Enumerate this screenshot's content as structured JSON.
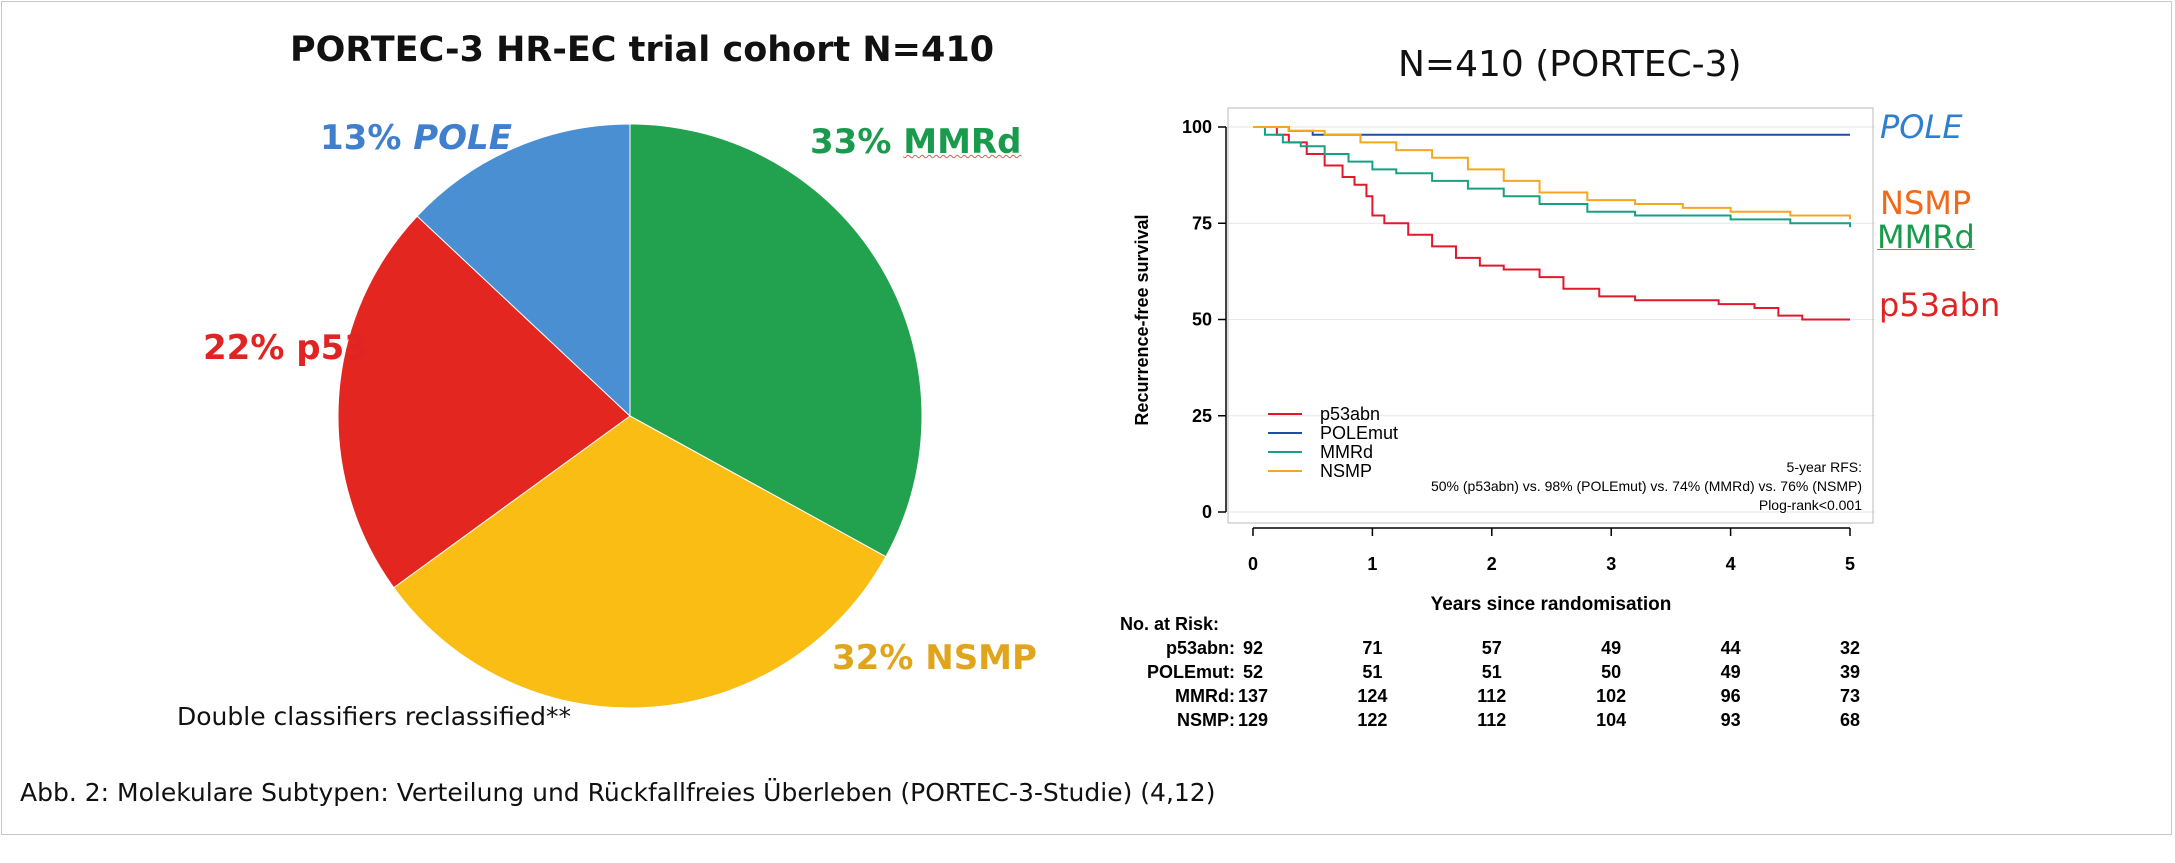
{
  "left_title": "PORTEC-3 HR-EC trial cohort  N=410",
  "pie_labels": [
    {
      "pct": "13%",
      "name": "POLE",
      "color": "#3f7fcb"
    },
    {
      "pct": "33%",
      "name": "MMRd",
      "color": "#1a9a4c"
    },
    {
      "pct": "22%",
      "name": "p53",
      "color": "#e02323"
    },
    {
      "pct": "32%",
      "name": "NSMP",
      "color": "#e0a51a"
    }
  ],
  "footnote": "Double classifiers reclassified**",
  "caption": "Abb. 2: Molekulare Subtypen: Verteilung und Rückfallfreies Überleben (PORTEC-3-Studie) (4,12)",
  "km_title": "N=410 (PORTEC-3)",
  "end_labels": {
    "pole": "POLE",
    "nsmp": "NSMP",
    "mmrd": "MMRd",
    "p53abn": "p53abn"
  },
  "colors": {
    "pole": "#4a8fd1",
    "mmrd": "#22a24f",
    "p53": "#e3261f",
    "nsmp": "#f9bd13",
    "km_p53": "#e0192c",
    "km_pole": "#1f4fa3",
    "km_mmrd": "#19a084",
    "km_nsmp": "#f5a623",
    "label_nsmp": "#f06a1a",
    "label_pole": "#2f7fd0"
  },
  "km_legend": [
    "p53abn",
    "POLEmut",
    "MMRd",
    "NSMP"
  ],
  "km_annotation": {
    "line1": "5-year RFS:",
    "line2": "50% (p53abn) vs. 98% (POLEmut) vs. 74% (MMRd) vs. 76% (NSMP)",
    "line3": "Plog-rank<0.001"
  },
  "risk_table": {
    "header": "No. at Risk:",
    "rows": [
      {
        "label": "p53abn:",
        "values": [
          "92",
          "71",
          "57",
          "49",
          "44",
          "32"
        ]
      },
      {
        "label": "POLEmut:",
        "values": [
          "52",
          "51",
          "51",
          "50",
          "49",
          "39"
        ]
      },
      {
        "label": "MMRd:",
        "values": [
          "137",
          "124",
          "112",
          "102",
          "96",
          "73"
        ]
      },
      {
        "label": "NSMP:",
        "values": [
          "129",
          "122",
          "112",
          "104",
          "93",
          "68"
        ]
      }
    ]
  },
  "chart_data": [
    {
      "type": "pie",
      "title": "PORTEC-3 HR-EC trial cohort  N=410",
      "slices": [
        {
          "label": "MMRd",
          "value": 33
        },
        {
          "label": "NSMP",
          "value": 32
        },
        {
          "label": "p53",
          "value": 22
        },
        {
          "label": "POLE",
          "value": 13
        }
      ]
    },
    {
      "type": "line",
      "title": "N=410 (PORTEC-3)",
      "xlabel": "Years since randomisation",
      "ylabel": "Recurrence-free survival",
      "xlim": [
        0,
        5
      ],
      "ylim": [
        0,
        100
      ],
      "xticks": [
        0,
        1,
        2,
        3,
        4,
        5
      ],
      "yticks": [
        0,
        25,
        50,
        75,
        100
      ],
      "grid": true,
      "legend": "bottom-left",
      "series": [
        {
          "name": "p53abn",
          "x": [
            0,
            0.2,
            0.3,
            0.45,
            0.6,
            0.75,
            0.85,
            0.95,
            1.0,
            1.1,
            1.3,
            1.5,
            1.7,
            1.9,
            2.1,
            2.4,
            2.6,
            2.9,
            3.2,
            3.6,
            3.9,
            4.2,
            4.4,
            4.6,
            5.0
          ],
          "y": [
            100,
            98,
            96,
            93,
            90,
            87,
            85,
            82,
            77,
            75,
            72,
            69,
            66,
            64,
            63,
            61,
            58,
            56,
            55,
            55,
            54,
            53,
            51,
            50,
            50
          ]
        },
        {
          "name": "POLEmut",
          "x": [
            0,
            0.3,
            0.5,
            5.0
          ],
          "y": [
            100,
            99,
            98,
            98
          ]
        },
        {
          "name": "MMRd",
          "x": [
            0,
            0.1,
            0.25,
            0.4,
            0.6,
            0.8,
            1.0,
            1.2,
            1.5,
            1.8,
            2.1,
            2.4,
            2.8,
            3.2,
            3.6,
            4.0,
            4.5,
            5.0
          ],
          "y": [
            100,
            98,
            96,
            95,
            93,
            91,
            89,
            88,
            86,
            84,
            82,
            80,
            78,
            77,
            77,
            76,
            75,
            74
          ]
        },
        {
          "name": "NSMP",
          "x": [
            0,
            0.3,
            0.6,
            0.9,
            1.2,
            1.5,
            1.8,
            2.1,
            2.4,
            2.8,
            3.2,
            3.6,
            4.0,
            4.5,
            5.0
          ],
          "y": [
            100,
            99,
            98,
            96,
            94,
            92,
            89,
            86,
            83,
            81,
            80,
            79,
            78,
            77,
            76
          ]
        }
      ]
    }
  ]
}
